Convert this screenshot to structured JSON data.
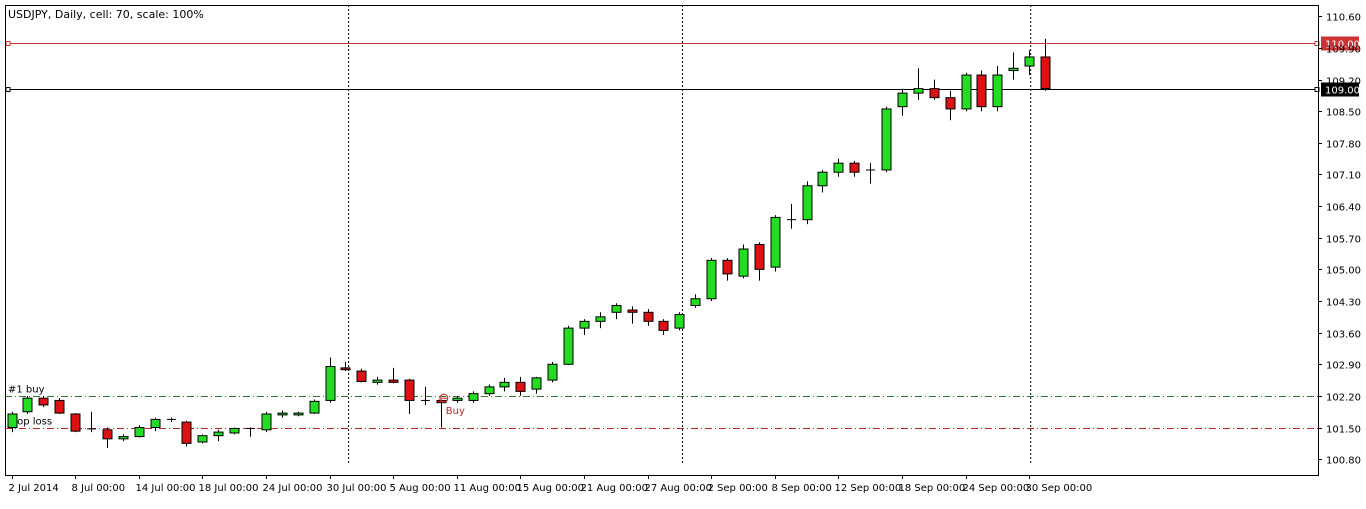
{
  "header": {
    "title": "USDJPY, Daily, cell: 70, scale: 100%"
  },
  "colors": {
    "bull": "#22dd22",
    "bear": "#dd1111",
    "wick": "#000000",
    "buy_line": "#2e7d32",
    "stop_line": "#cc2222",
    "resistance_line": "#cc3333",
    "current_line": "#000000",
    "grid": "#000000"
  },
  "chart_data": {
    "type": "candlestick",
    "symbol": "USDJPY",
    "timeframe": "Daily",
    "ylim": [
      100.45,
      110.85
    ],
    "y_ticks": [
      "110.60",
      "109.90",
      "109.20",
      "108.50",
      "107.80",
      "107.10",
      "106.40",
      "105.70",
      "105.00",
      "104.30",
      "103.60",
      "102.90",
      "102.20",
      "101.50",
      "100.80"
    ],
    "x_ticks": [
      {
        "label": "2 Jul 2014",
        "index": 0
      },
      {
        "label": "8 Jul 00:00",
        "index": 4
      },
      {
        "label": "14 Jul 00:00",
        "index": 8
      },
      {
        "label": "18 Jul 00:00",
        "index": 12
      },
      {
        "label": "24 Jul 00:00",
        "index": 16
      },
      {
        "label": "30 Jul 00:00",
        "index": 20
      },
      {
        "label": "5 Aug 00:00",
        "index": 24
      },
      {
        "label": "11 Aug 00:00",
        "index": 28
      },
      {
        "label": "15 Aug 00:00",
        "index": 32
      },
      {
        "label": "21 Aug 00:00",
        "index": 36
      },
      {
        "label": "27 Aug 00:00",
        "index": 40
      },
      {
        "label": "2 Sep 00:00",
        "index": 44
      },
      {
        "label": "8 Sep 00:00",
        "index": 48
      },
      {
        "label": "12 Sep 00:00",
        "index": 52
      },
      {
        "label": "18 Sep 00:00",
        "index": 56
      },
      {
        "label": "24 Sep 00:00",
        "index": 60
      },
      {
        "label": "30 Sep 00:00",
        "index": 64
      }
    ],
    "period_separators": [
      21.2,
      42.2,
      64.1
    ],
    "candles": [
      {
        "o": 101.5,
        "h": 101.85,
        "l": 101.4,
        "c": 101.8
      },
      {
        "o": 101.85,
        "h": 102.2,
        "l": 101.8,
        "c": 102.15
      },
      {
        "o": 102.15,
        "h": 102.2,
        "l": 101.95,
        "c": 102.0
      },
      {
        "o": 102.1,
        "h": 102.15,
        "l": 101.8,
        "c": 101.82
      },
      {
        "o": 101.8,
        "h": 101.82,
        "l": 101.4,
        "c": 101.42
      },
      {
        "o": 101.45,
        "h": 101.85,
        "l": 101.4,
        "c": 101.47
      },
      {
        "o": 101.45,
        "h": 101.5,
        "l": 101.05,
        "c": 101.25
      },
      {
        "o": 101.25,
        "h": 101.35,
        "l": 101.2,
        "c": 101.3
      },
      {
        "o": 101.3,
        "h": 101.55,
        "l": 101.28,
        "c": 101.5
      },
      {
        "o": 101.5,
        "h": 101.72,
        "l": 101.42,
        "c": 101.68
      },
      {
        "o": 101.68,
        "h": 101.72,
        "l": 101.62,
        "c": 101.66
      },
      {
        "o": 101.62,
        "h": 101.65,
        "l": 101.08,
        "c": 101.15
      },
      {
        "o": 101.18,
        "h": 101.35,
        "l": 101.15,
        "c": 101.32
      },
      {
        "o": 101.32,
        "h": 101.45,
        "l": 101.2,
        "c": 101.4
      },
      {
        "o": 101.38,
        "h": 101.5,
        "l": 101.35,
        "c": 101.48
      },
      {
        "o": 101.45,
        "h": 101.5,
        "l": 101.3,
        "c": 101.48
      },
      {
        "o": 101.45,
        "h": 101.85,
        "l": 101.4,
        "c": 101.8
      },
      {
        "o": 101.78,
        "h": 101.88,
        "l": 101.72,
        "c": 101.82
      },
      {
        "o": 101.78,
        "h": 101.85,
        "l": 101.75,
        "c": 101.82
      },
      {
        "o": 101.82,
        "h": 102.12,
        "l": 101.8,
        "c": 102.08
      },
      {
        "o": 102.1,
        "h": 103.05,
        "l": 102.05,
        "c": 102.85
      },
      {
        "o": 102.82,
        "h": 102.95,
        "l": 102.75,
        "c": 102.78
      },
      {
        "o": 102.75,
        "h": 102.8,
        "l": 102.5,
        "c": 102.52
      },
      {
        "o": 102.5,
        "h": 102.62,
        "l": 102.45,
        "c": 102.55
      },
      {
        "o": 102.55,
        "h": 102.82,
        "l": 102.48,
        "c": 102.5
      },
      {
        "o": 102.55,
        "h": 102.58,
        "l": 101.8,
        "c": 102.1
      },
      {
        "o": 102.1,
        "h": 102.4,
        "l": 102.0,
        "c": 102.1
      },
      {
        "o": 102.1,
        "h": 102.12,
        "l": 101.5,
        "c": 102.05
      },
      {
        "o": 102.1,
        "h": 102.2,
        "l": 102.05,
        "c": 102.15
      },
      {
        "o": 102.1,
        "h": 102.3,
        "l": 102.05,
        "c": 102.25
      },
      {
        "o": 102.25,
        "h": 102.45,
        "l": 102.2,
        "c": 102.4
      },
      {
        "o": 102.4,
        "h": 102.6,
        "l": 102.3,
        "c": 102.5
      },
      {
        "o": 102.5,
        "h": 102.62,
        "l": 102.2,
        "c": 102.3
      },
      {
        "o": 102.35,
        "h": 102.62,
        "l": 102.25,
        "c": 102.6
      },
      {
        "o": 102.55,
        "h": 102.95,
        "l": 102.5,
        "c": 102.9
      },
      {
        "o": 102.9,
        "h": 103.75,
        "l": 102.88,
        "c": 103.7
      },
      {
        "o": 103.7,
        "h": 103.9,
        "l": 103.55,
        "c": 103.85
      },
      {
        "o": 103.85,
        "h": 104.05,
        "l": 103.7,
        "c": 103.95
      },
      {
        "o": 104.05,
        "h": 104.25,
        "l": 103.9,
        "c": 104.2
      },
      {
        "o": 104.1,
        "h": 104.18,
        "l": 103.8,
        "c": 104.05
      },
      {
        "o": 104.05,
        "h": 104.12,
        "l": 103.75,
        "c": 103.85
      },
      {
        "o": 103.85,
        "h": 103.9,
        "l": 103.55,
        "c": 103.65
      },
      {
        "o": 103.7,
        "h": 104.05,
        "l": 103.65,
        "c": 104.0
      },
      {
        "o": 104.2,
        "h": 104.45,
        "l": 104.15,
        "c": 104.35
      },
      {
        "o": 104.35,
        "h": 105.25,
        "l": 104.3,
        "c": 105.2
      },
      {
        "o": 105.2,
        "h": 105.25,
        "l": 104.75,
        "c": 104.9
      },
      {
        "o": 104.85,
        "h": 105.55,
        "l": 104.8,
        "c": 105.45
      },
      {
        "o": 105.55,
        "h": 105.6,
        "l": 104.75,
        "c": 105.0
      },
      {
        "o": 105.05,
        "h": 106.2,
        "l": 104.95,
        "c": 106.15
      },
      {
        "o": 106.1,
        "h": 106.45,
        "l": 105.9,
        "c": 106.1
      },
      {
        "o": 106.1,
        "h": 106.95,
        "l": 106.0,
        "c": 106.85
      },
      {
        "o": 106.85,
        "h": 107.2,
        "l": 106.7,
        "c": 107.15
      },
      {
        "o": 107.15,
        "h": 107.45,
        "l": 107.05,
        "c": 107.35
      },
      {
        "o": 107.35,
        "h": 107.4,
        "l": 107.05,
        "c": 107.15
      },
      {
        "o": 107.18,
        "h": 107.35,
        "l": 106.9,
        "c": 107.2
      },
      {
        "o": 107.2,
        "h": 108.6,
        "l": 107.15,
        "c": 108.55
      },
      {
        "o": 108.6,
        "h": 109.0,
        "l": 108.4,
        "c": 108.9
      },
      {
        "o": 108.9,
        "h": 109.45,
        "l": 108.75,
        "c": 109.0
      },
      {
        "o": 109.0,
        "h": 109.2,
        "l": 108.75,
        "c": 108.8
      },
      {
        "o": 108.8,
        "h": 108.95,
        "l": 108.3,
        "c": 108.55
      },
      {
        "o": 108.55,
        "h": 109.35,
        "l": 108.5,
        "c": 109.3
      },
      {
        "o": 109.3,
        "h": 109.4,
        "l": 108.5,
        "c": 108.6
      },
      {
        "o": 108.6,
        "h": 109.5,
        "l": 108.5,
        "c": 109.3
      },
      {
        "o": 109.4,
        "h": 109.8,
        "l": 109.2,
        "c": 109.45
      },
      {
        "o": 109.5,
        "h": 109.85,
        "l": 109.3,
        "c": 109.7
      },
      {
        "o": 109.7,
        "h": 110.1,
        "l": 108.95,
        "c": 109.0
      }
    ],
    "lines": [
      {
        "name": "#1 buy",
        "value": 102.19,
        "style": "dash-dot",
        "color": "#2e7d32",
        "label_side": "left"
      },
      {
        "name": "stop loss",
        "value": 101.5,
        "style": "dash-dot",
        "color": "#cc2222",
        "label_side": "left"
      },
      {
        "name": "110.00",
        "value": 110.0,
        "style": "solid",
        "color": "#cc3333",
        "label_side": "axis"
      },
      {
        "name": "109.00",
        "value": 109.0,
        "style": "solid",
        "color": "#000000",
        "label_side": "axis"
      }
    ],
    "annotations": [
      {
        "text": "Buy",
        "index": 27,
        "value": 102.15
      }
    ]
  }
}
